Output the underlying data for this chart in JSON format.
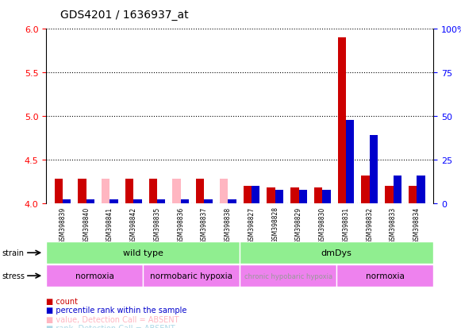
{
  "title": "GDS4201 / 1636937_at",
  "samples": [
    "GSM398839",
    "GSM398840",
    "GSM398841",
    "GSM398842",
    "GSM398835",
    "GSM398836",
    "GSM398837",
    "GSM398838",
    "GSM398827",
    "GSM398828",
    "GSM398829",
    "GSM398830",
    "GSM398831",
    "GSM398832",
    "GSM398833",
    "GSM398834"
  ],
  "red_values": [
    4.28,
    4.28,
    4.28,
    4.28,
    4.28,
    4.28,
    4.28,
    4.28,
    4.2,
    4.18,
    4.18,
    4.18,
    5.9,
    4.32,
    4.2,
    4.2
  ],
  "red_absent": [
    false,
    false,
    true,
    false,
    false,
    true,
    false,
    true,
    false,
    false,
    false,
    false,
    false,
    false,
    false,
    false
  ],
  "blue_values": [
    4.04,
    4.04,
    4.04,
    4.04,
    4.04,
    4.04,
    4.04,
    4.04,
    4.2,
    4.15,
    4.15,
    4.15,
    4.95,
    4.78,
    4.32,
    4.32
  ],
  "blue_absent": [
    false,
    false,
    false,
    false,
    false,
    false,
    false,
    false,
    false,
    false,
    false,
    false,
    false,
    false,
    false,
    false
  ],
  "ylim_left": [
    4.0,
    6.0
  ],
  "ylim_right": [
    0,
    100
  ],
  "yticks_left": [
    4.0,
    4.5,
    5.0,
    5.5,
    6.0
  ],
  "yticks_right": [
    0,
    25,
    50,
    75,
    100
  ],
  "strain_groups": [
    {
      "label": "wild type",
      "start": 0,
      "end": 8,
      "color": "#90EE90"
    },
    {
      "label": "dmDys",
      "start": 8,
      "end": 16,
      "color": "#90EE90"
    }
  ],
  "stress_groups": [
    {
      "label": "normoxia",
      "start": 0,
      "end": 4,
      "color": "#EE82EE",
      "text_color": "black",
      "fontsize": 7.5
    },
    {
      "label": "normobaric hypoxia",
      "start": 4,
      "end": 8,
      "color": "#EE82EE",
      "text_color": "black",
      "fontsize": 7.5
    },
    {
      "label": "chronic hypobaric hypoxia",
      "start": 8,
      "end": 12,
      "color": "#EE82EE",
      "text_color": "#999999",
      "fontsize": 6.0
    },
    {
      "label": "normoxia",
      "start": 12,
      "end": 16,
      "color": "#EE82EE",
      "text_color": "black",
      "fontsize": 7.5
    }
  ],
  "bar_width": 0.35,
  "color_red": "#CC0000",
  "color_red_absent": "#FFB6C1",
  "color_blue": "#0000CC",
  "color_blue_absent": "#ADD8E6",
  "background_color": "#FFFFFF",
  "plot_bg": "#FFFFFF"
}
